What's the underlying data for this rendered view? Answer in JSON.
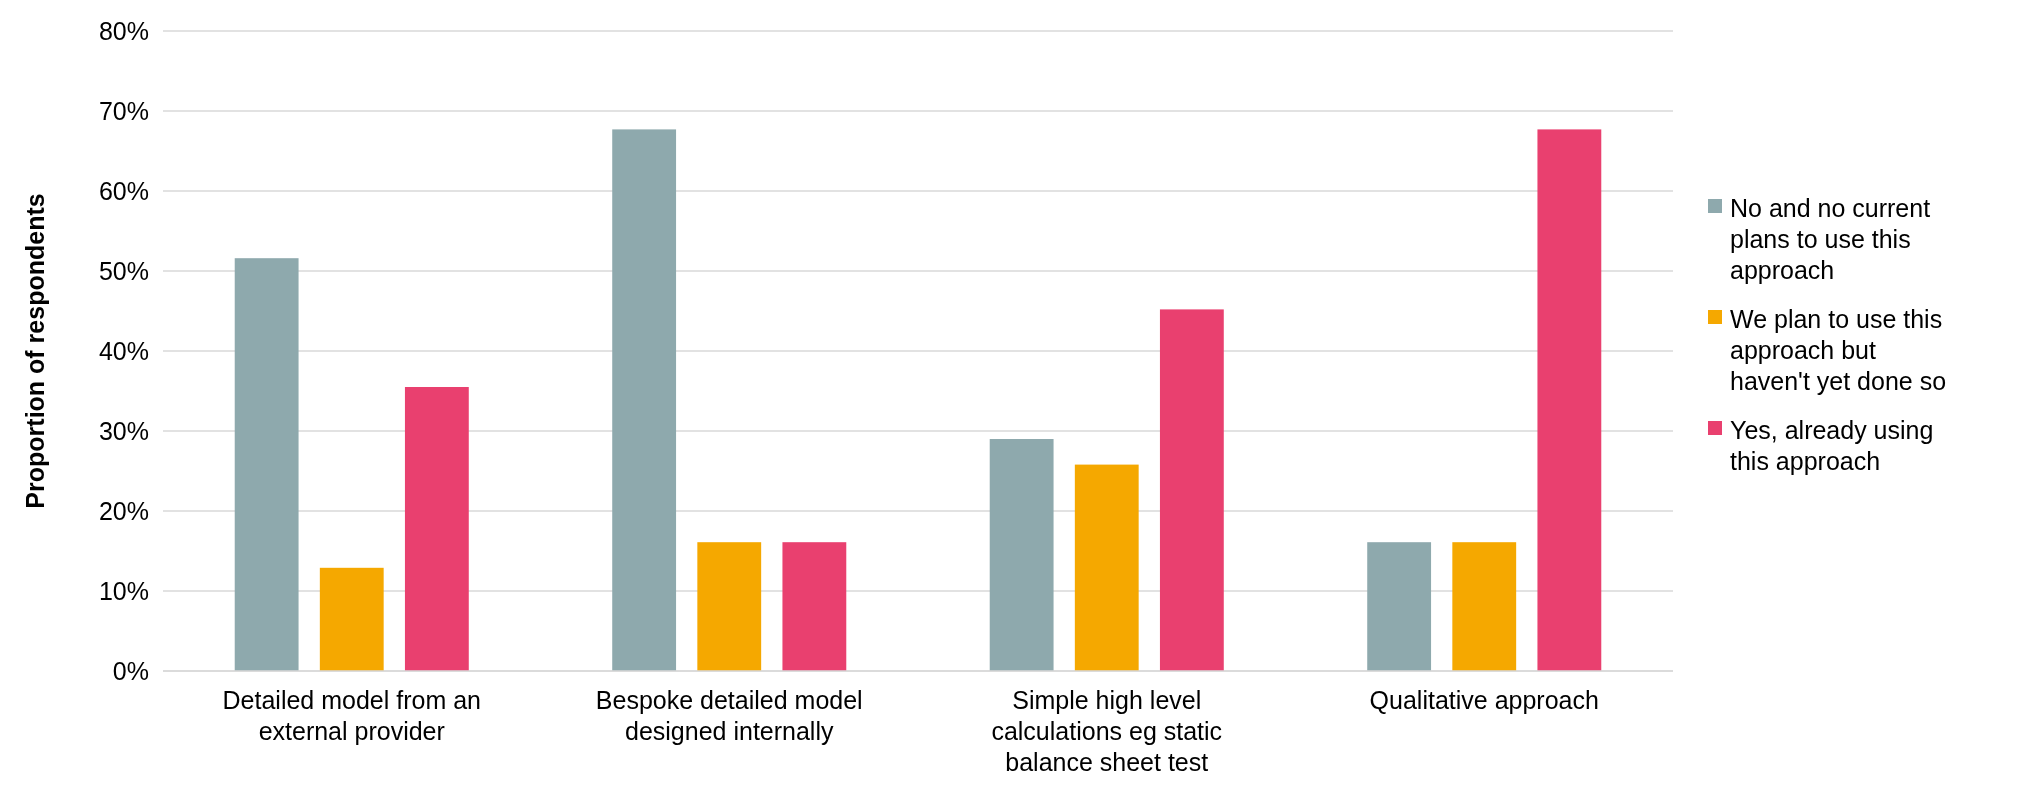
{
  "chart_data": {
    "type": "bar",
    "ylabel": "Proportion of respondents",
    "categories": [
      "Detailed model from an external provider",
      "Bespoke detailed model designed internally",
      "Simple high level calculations eg static balance sheet test",
      "Qualitative approach"
    ],
    "series": [
      {
        "name": "No and no current plans to use this approach",
        "color": "#8ea9ad",
        "values": [
          51.6,
          67.7,
          29.0,
          16.1
        ]
      },
      {
        "name": "We plan to use this approach but haven't yet done so",
        "color": "#f5a800",
        "values": [
          12.9,
          16.1,
          25.8,
          16.1
        ]
      },
      {
        "name": "Yes, already using this approach",
        "color": "#e9406f",
        "values": [
          35.5,
          16.1,
          45.2,
          67.7
        ]
      }
    ],
    "ylim": [
      0,
      80
    ],
    "yticks": [
      {
        "value": 0,
        "label": "0%"
      },
      {
        "value": 10,
        "label": "10%"
      },
      {
        "value": 20,
        "label": "20%"
      },
      {
        "value": 30,
        "label": "30%"
      },
      {
        "value": 40,
        "label": "40%"
      },
      {
        "value": 50,
        "label": "50%"
      },
      {
        "value": 60,
        "label": "60%"
      },
      {
        "value": 70,
        "label": "70%"
      },
      {
        "value": 80,
        "label": "80%"
      }
    ],
    "grid": "y",
    "legend": "right"
  }
}
